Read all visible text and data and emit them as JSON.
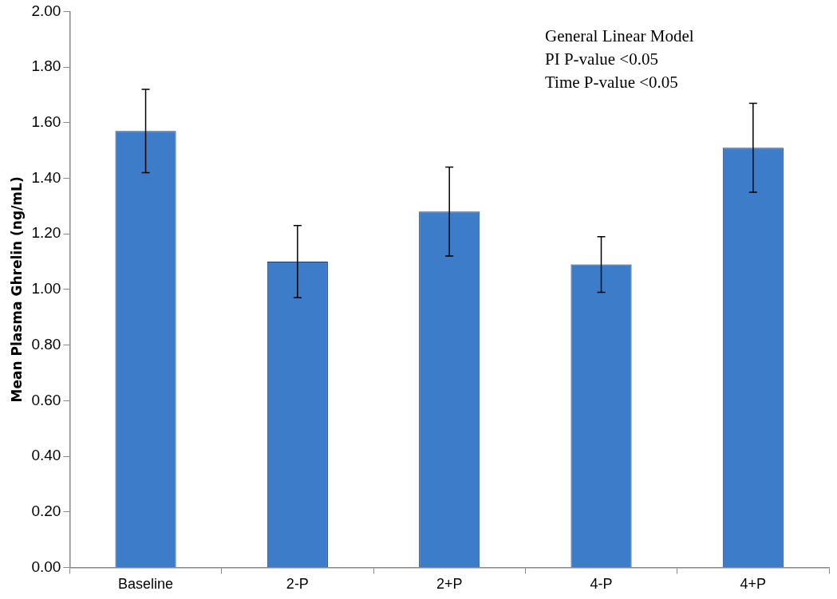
{
  "chart_data": {
    "type": "bar",
    "ylabel": "Mean Plasma Ghrelin (ng/mL)",
    "categories": [
      "Baseline",
      "2-P",
      "2+P",
      "4-P",
      "4+P"
    ],
    "values": [
      1.57,
      1.1,
      1.28,
      1.09,
      1.51
    ],
    "errors": [
      0.15,
      0.13,
      0.16,
      0.1,
      0.16
    ],
    "color": "#3d7cc9",
    "ylim": [
      0,
      2
    ],
    "yticks": [
      {
        "value": 0,
        "label": "0.00"
      },
      {
        "value": 0.2,
        "label": "0.20"
      },
      {
        "value": 0.4,
        "label": "0.40"
      },
      {
        "value": 0.6,
        "label": "0.60"
      },
      {
        "value": 0.8,
        "label": "0.80"
      },
      {
        "value": 1,
        "label": "1.00"
      },
      {
        "value": 1.2,
        "label": "1.20"
      },
      {
        "value": 1.4,
        "label": "1.40"
      },
      {
        "value": 1.6,
        "label": "1.60"
      },
      {
        "value": 1.8,
        "label": "1.80"
      },
      {
        "value": 2,
        "label": "2.00"
      }
    ],
    "grid": false,
    "legend": false,
    "annotations": [
      "General Linear Model",
      "PI P-value <0.05",
      "Time P-value <0.05"
    ]
  }
}
